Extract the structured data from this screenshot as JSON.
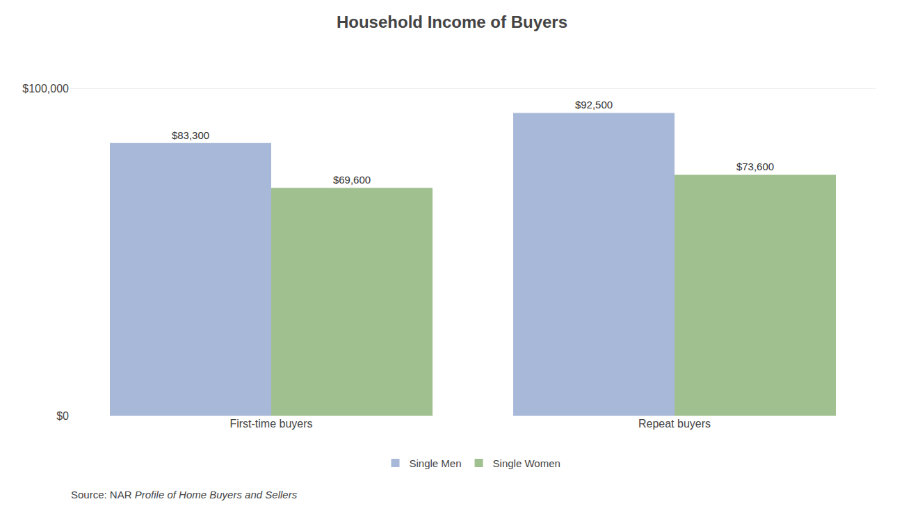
{
  "chart_data": {
    "type": "bar",
    "title": "Household Income of Buyers",
    "categories": [
      "First-time buyers",
      "Repeat buyers"
    ],
    "series": [
      {
        "name": "Single Men",
        "color": "#a8b8d8",
        "values": [
          83300,
          92500
        ],
        "value_labels": [
          "$83,300",
          "$92,500"
        ]
      },
      {
        "name": "Single Women",
        "color": "#a0c090",
        "values": [
          69600,
          73600
        ],
        "value_labels": [
          "$69,600",
          "$73,600"
        ]
      }
    ],
    "ylim": [
      0,
      110000
    ],
    "yticks": [
      {
        "value": 0,
        "label": "$0"
      },
      {
        "value": 100000,
        "label": "$100,000"
      }
    ],
    "grid": true,
    "data_labels": true,
    "legend": "bottom",
    "annotations": [
      "Source: NAR ",
      "Profile of Home Buyers and Sellers"
    ]
  }
}
